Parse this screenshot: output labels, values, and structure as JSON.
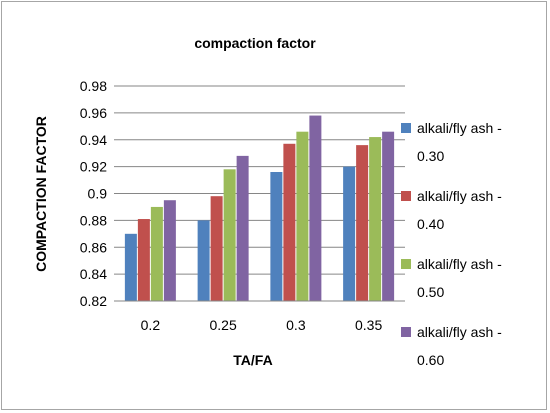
{
  "chart_data": {
    "type": "bar",
    "title": "compaction factor",
    "xlabel": "TA/FA",
    "ylabel": "COMPACTION FACTOR",
    "categories": [
      "0.2",
      "0.25",
      "0.3",
      "0.35"
    ],
    "ylim": [
      0.82,
      0.98
    ],
    "yticks": [
      "0.82",
      "0.84",
      "0.86",
      "0.88",
      "0.9",
      "0.92",
      "0.94",
      "0.96",
      "0.98"
    ],
    "grid": true,
    "legend_position": "right",
    "series": [
      {
        "name_line1": "alkali/fly ash -",
        "name_line2": "0.30",
        "color": "#4f81bd",
        "values": [
          0.87,
          0.88,
          0.916,
          0.92
        ]
      },
      {
        "name_line1": "alkali/fly ash -",
        "name_line2": "0.40",
        "color": "#c0504d",
        "values": [
          0.881,
          0.898,
          0.937,
          0.936
        ]
      },
      {
        "name_line1": "alkali/fly ash -",
        "name_line2": "0.50",
        "color": "#9bbb59",
        "values": [
          0.89,
          0.918,
          0.946,
          0.942
        ]
      },
      {
        "name_line1": "alkali/fly ash -",
        "name_line2": "0.60",
        "color": "#8064a2",
        "values": [
          0.895,
          0.928,
          0.958,
          0.946
        ]
      }
    ]
  }
}
